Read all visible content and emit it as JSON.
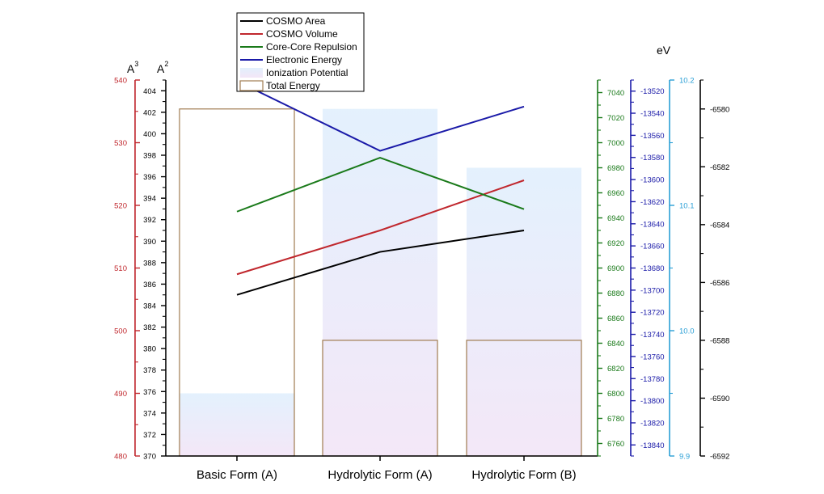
{
  "chart_data": {
    "type": "line",
    "categories": [
      "Basic Form (A)",
      "Hydrolytic Form (A)",
      "Hydrolytic Form (B)"
    ],
    "legend_position": "top-center",
    "series": [
      {
        "name": "COSMO Area",
        "kind": "line",
        "axis": "area",
        "color": "#000000",
        "values": [
          385.0,
          389.0,
          391.0
        ]
      },
      {
        "name": "COSMO Volume",
        "kind": "line",
        "axis": "volume",
        "color": "#c0272d",
        "values": [
          509.0,
          516.0,
          524.0
        ]
      },
      {
        "name": "Core-Core Repulsion",
        "kind": "line",
        "axis": "repulsion",
        "color": "#1a7a1a",
        "values": [
          6945,
          6988,
          6947
        ]
      },
      {
        "name": "Electronic Energy",
        "kind": "line",
        "axis": "electronic",
        "color": "#1a1aa8",
        "values": [
          -13511,
          -13574,
          -13534
        ]
      },
      {
        "name": "Ionization Potential",
        "kind": "bar",
        "axis": "ionization",
        "color": "#e4ecfb",
        "values": [
          9.95,
          10.177,
          10.13
        ]
      },
      {
        "name": "Total Energy",
        "kind": "bar-outline",
        "axis": "total",
        "color": "#a07b50",
        "values": [
          -6580.0,
          -6588.0,
          -6588.0
        ]
      }
    ],
    "axes": [
      {
        "id": "volume",
        "unit": "A3",
        "min": 480,
        "max": 540,
        "major": 10,
        "color": "#c0272d",
        "ticks": [
          "480",
          "490",
          "500",
          "510",
          "520",
          "530",
          "540"
        ]
      },
      {
        "id": "area",
        "unit": "A2",
        "min": 370,
        "max": 405,
        "major": 2,
        "color": "#000000",
        "ticks": [
          "370",
          "372",
          "374",
          "376",
          "378",
          "380",
          "382",
          "384",
          "386",
          "388",
          "390",
          "392",
          "394",
          "396",
          "398",
          "400",
          "402",
          "404"
        ]
      },
      {
        "id": "repulsion",
        "unit": "",
        "min": 6750,
        "max": 7050,
        "major": 20,
        "color": "#1a7a1a",
        "ticks": [
          "6760",
          "6780",
          "6800",
          "6820",
          "6840",
          "6860",
          "6880",
          "6900",
          "6920",
          "6940",
          "6960",
          "6980",
          "7000",
          "7020",
          "7040"
        ]
      },
      {
        "id": "electronic",
        "unit": "",
        "min": -13850,
        "max": -13510,
        "major": 20,
        "color": "#1a1aa8",
        "ticks": [
          "-13840",
          "-13820",
          "-13800",
          "-13780",
          "-13760",
          "-13740",
          "-13720",
          "-13700",
          "-13680",
          "-13660",
          "-13640",
          "-13620",
          "-13600",
          "-13580",
          "-13560",
          "-13540",
          "-13520"
        ]
      },
      {
        "id": "ionization",
        "unit": "eV",
        "min": 9.9,
        "max": 10.2,
        "major": 0.1,
        "color": "#2a9fd6",
        "ticks": [
          "9.9",
          "10.0",
          "10.1",
          "10.2"
        ]
      },
      {
        "id": "total",
        "unit": "",
        "min": -6592,
        "max": -6579,
        "major": 2,
        "color": "#000000",
        "ticks": [
          "-6592",
          "-6590",
          "-6588",
          "-6586",
          "-6584",
          "-6582",
          "-6580"
        ]
      }
    ]
  }
}
